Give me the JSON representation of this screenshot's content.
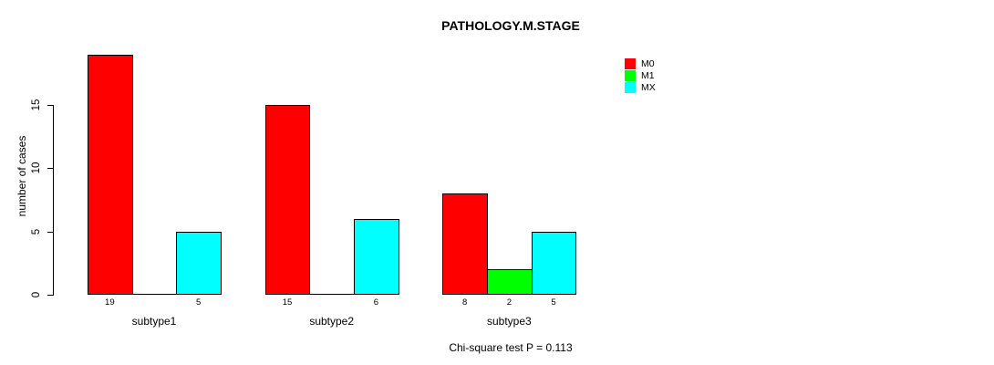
{
  "chart_data": {
    "type": "bar",
    "title": "PATHOLOGY.M.STAGE",
    "xlabel": "",
    "ylabel": "number of cases",
    "categories": [
      "subtype1",
      "subtype2",
      "subtype3"
    ],
    "series": [
      {
        "name": "M0",
        "color": "#ff0000",
        "values": [
          19,
          15,
          8
        ]
      },
      {
        "name": "M1",
        "color": "#00ff00",
        "values": [
          0,
          0,
          2
        ]
      },
      {
        "name": "MX",
        "color": "#00ffff",
        "values": [
          5,
          6,
          5
        ]
      }
    ],
    "bar_value_labels": {
      "subtype1": [
        "19",
        "5"
      ],
      "subtype2": [
        "15",
        "6"
      ],
      "subtype3": [
        "8",
        "2",
        "5"
      ]
    },
    "yticks": [
      "0",
      "5",
      "10",
      "15"
    ],
    "ylim": [
      0,
      19
    ],
    "grid": false,
    "legend_position": "top-right",
    "legend_entries": [
      "M0",
      "M1",
      "MX"
    ],
    "annotation": "Chi-square test P = 0.113"
  }
}
